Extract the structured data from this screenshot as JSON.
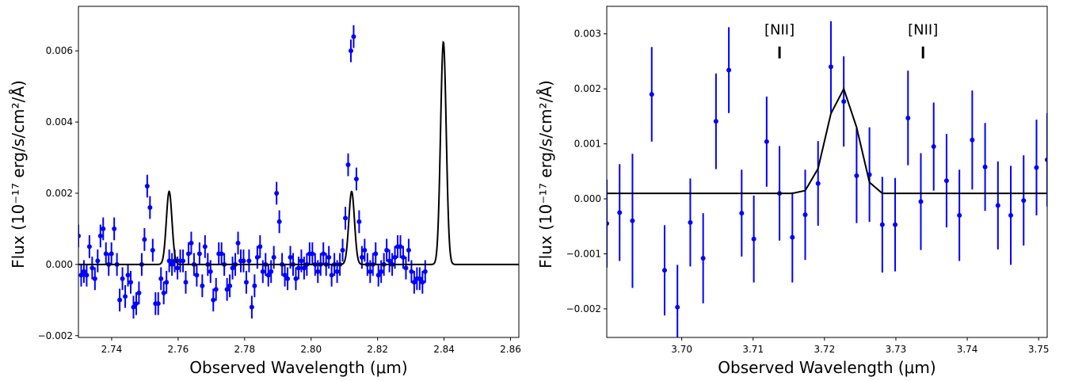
{
  "chart_data": [
    {
      "type": "scatter",
      "xlabel": "Observed Wavelength (μm)",
      "ylabel": "Flux (10⁻¹⁷ erg/s/cm²/Å)",
      "xlim": [
        2.73,
        2.8625
      ],
      "ylim": [
        -0.00205,
        0.00725
      ],
      "grid": false,
      "xticks": [
        2.74,
        2.76,
        2.78,
        2.8,
        2.82,
        2.84,
        2.86
      ],
      "xtick_labels": [
        "2.74",
        "2.76",
        "2.78",
        "2.80",
        "2.82",
        "2.84",
        "2.86"
      ],
      "yticks": [
        -0.002,
        0.0,
        0.002,
        0.004,
        0.006
      ],
      "ytick_labels": [
        "−0.002",
        "0.000",
        "0.002",
        "0.004",
        "0.006"
      ],
      "marker_color": "#0000ff",
      "line_color": "#000000",
      "series": [
        {
          "kind": "data_points",
          "x_start": 2.73,
          "x_step": 0.000828,
          "y": [
            0.0008,
            -0.0003,
            -0.0002,
            -0.0003,
            0.0005,
            -0.0001,
            -0.0004,
            0.0001,
            0.0008,
            0.001,
            0.0003,
            0.0,
            0.0003,
            0.001,
            0.0,
            -0.001,
            -0.0004,
            -0.0009,
            -0.0003,
            -0.0005,
            -0.0012,
            -0.0011,
            -0.0008,
            0.0,
            0.0007,
            0.0022,
            0.0016,
            0.0004,
            -0.0011,
            -0.0011,
            -0.0004,
            -0.0008,
            -0.0005,
            0.0001,
            0.0,
            0.0001,
            -0.0001,
            0.0001,
            0.0001,
            -0.0005,
            0.0003,
            0.0006,
            0.0,
            -0.0003,
            0.0003,
            -0.0006,
            0.0005,
            0.0,
            -0.0002,
            -0.001,
            -0.0007,
            0.0003,
            0.0003,
            0.0,
            -0.0007,
            -0.0006,
            -0.0001,
            0.0,
            0.0006,
            0.0001,
            0.0001,
            -0.0005,
            0.0001,
            -0.0012,
            -0.0006,
            0.0002,
            0.0005,
            -0.0002,
            0.0,
            -0.0003,
            -0.0002,
            0.0002,
            0.002,
            0.0012,
            0.0,
            -0.0003,
            -0.0004,
            0.0002,
            0.0,
            -0.0004,
            -0.0001,
            0.0001,
            -0.0001,
            0.0,
            0.0003,
            0.0003,
            0.0,
            -0.0002,
            0.0,
            0.0003,
            0.0,
            0.0002,
            -0.0003,
            0.0,
            -0.0002,
            0.0,
            0.0004,
            0.0013,
            0.0028,
            0.006,
            0.0064,
            0.0024,
            0.0012,
            0.0002,
            0.0004,
            0.0,
            -0.0002,
            0.0,
            0.0003,
            -0.0003,
            -0.0002,
            0.0,
            0.0004,
            0.0001,
            0.0,
            0.0002,
            0.0005,
            0.0005,
            0.0002,
            -0.0001,
            0.0004,
            -0.0002,
            -0.0005,
            -0.0004,
            -0.0004,
            -0.0005,
            -0.0002
          ],
          "yerr": 0.00032
        },
        {
          "kind": "model_line",
          "baseline": 0.0,
          "gaussians": [
            {
              "center": 2.7573,
              "amplitude": 0.00205,
              "sigma": 0.00085
            },
            {
              "center": 2.8122,
              "amplitude": 0.00205,
              "sigma": 0.00085
            },
            {
              "center": 2.8398,
              "amplitude": 0.00625,
              "sigma": 0.00085
            }
          ]
        }
      ]
    },
    {
      "type": "scatter",
      "xlabel": "Observed Wavelength (μm)",
      "ylabel": "Flux (10⁻¹⁷ erg/s/cm²/Å)",
      "xlim": [
        3.6895,
        3.7512
      ],
      "ylim": [
        -0.00252,
        0.0035
      ],
      "grid": false,
      "xticks": [
        3.7,
        3.71,
        3.72,
        3.73,
        3.74,
        3.75
      ],
      "xtick_labels": [
        "3.70",
        "3.71",
        "3.72",
        "3.73",
        "3.74",
        "3.75"
      ],
      "yticks": [
        -0.002,
        -0.001,
        0.0,
        0.001,
        0.002,
        0.003
      ],
      "ytick_labels": [
        "−0.002",
        "−0.001",
        "0.000",
        "0.001",
        "0.002",
        "0.003"
      ],
      "marker_color": "#0000ff",
      "line_color": "#000000",
      "annotations": [
        {
          "text": "[NII]",
          "x": 3.7137,
          "y": 0.003
        },
        {
          "text": "[NII]",
          "x": 3.7338,
          "y": 0.003
        }
      ],
      "series": [
        {
          "kind": "data_points",
          "points": [
            {
              "x": 3.6895,
              "y": -0.00045,
              "err": 0.0008
            },
            {
              "x": 3.6913,
              "y": -0.00025,
              "err": 0.00088
            },
            {
              "x": 3.6931,
              "y": -0.0004,
              "err": 0.00122
            },
            {
              "x": 3.6958,
              "y": 0.0019,
              "err": 0.00086
            },
            {
              "x": 3.6976,
              "y": -0.0013,
              "err": 0.00082
            },
            {
              "x": 3.6994,
              "y": -0.00197,
              "err": 0.00077
            },
            {
              "x": 3.7012,
              "y": -0.00043,
              "err": 0.0008
            },
            {
              "x": 3.703,
              "y": -0.00108,
              "err": 0.00082
            },
            {
              "x": 3.7048,
              "y": 0.00141,
              "err": 0.00087
            },
            {
              "x": 3.7066,
              "y": 0.00234,
              "err": 0.00078
            },
            {
              "x": 3.7084,
              "y": -0.00026,
              "err": 0.00079
            },
            {
              "x": 3.7101,
              "y": -0.00073,
              "err": 0.00079
            },
            {
              "x": 3.7119,
              "y": 0.00104,
              "err": 0.00082
            },
            {
              "x": 3.7137,
              "y": 0.0001,
              "err": 0.00086
            },
            {
              "x": 3.7155,
              "y": -0.0007,
              "err": 0.00082
            },
            {
              "x": 3.7173,
              "y": -0.00029,
              "err": 0.00082
            },
            {
              "x": 3.7191,
              "y": 0.00028,
              "err": 0.00077
            },
            {
              "x": 3.7209,
              "y": 0.0024,
              "err": 0.00083
            },
            {
              "x": 3.7227,
              "y": 0.00177,
              "err": 0.00082
            },
            {
              "x": 3.7245,
              "y": 0.00042,
              "err": 0.00086
            },
            {
              "x": 3.7263,
              "y": 0.00044,
              "err": 0.00086
            },
            {
              "x": 3.7281,
              "y": -0.00047,
              "err": 0.00087
            },
            {
              "x": 3.7299,
              "y": -0.00047,
              "err": 0.00085
            },
            {
              "x": 3.7317,
              "y": 0.00147,
              "err": 0.00086
            },
            {
              "x": 3.7335,
              "y": -5e-05,
              "err": 0.00088
            },
            {
              "x": 3.7353,
              "y": 0.00095,
              "err": 0.0008
            },
            {
              "x": 3.7371,
              "y": 0.00033,
              "err": 0.00085
            },
            {
              "x": 3.7389,
              "y": -0.0003,
              "err": 0.00083
            },
            {
              "x": 3.7407,
              "y": 0.00107,
              "err": 0.0009
            },
            {
              "x": 3.7425,
              "y": 0.00058,
              "err": 0.0008
            },
            {
              "x": 3.7443,
              "y": -0.00012,
              "err": 0.0008
            },
            {
              "x": 3.7461,
              "y": -0.0003,
              "err": 0.0009
            },
            {
              "x": 3.7479,
              "y": -3e-05,
              "err": 0.00082
            },
            {
              "x": 3.7497,
              "y": 0.00057,
              "err": 0.00087
            },
            {
              "x": 3.7512,
              "y": 0.00071,
              "err": 0.00085
            }
          ]
        },
        {
          "kind": "model_line",
          "x": [
            3.6895,
            3.7155,
            3.7173,
            3.7191,
            3.7209,
            3.7227,
            3.7245,
            3.7263,
            3.7281,
            3.7512
          ],
          "y": [
            0.0001,
            0.0001,
            0.00015,
            0.00055,
            0.00155,
            0.002,
            0.0013,
            0.0003,
            0.0001,
            0.0001
          ]
        }
      ]
    }
  ]
}
